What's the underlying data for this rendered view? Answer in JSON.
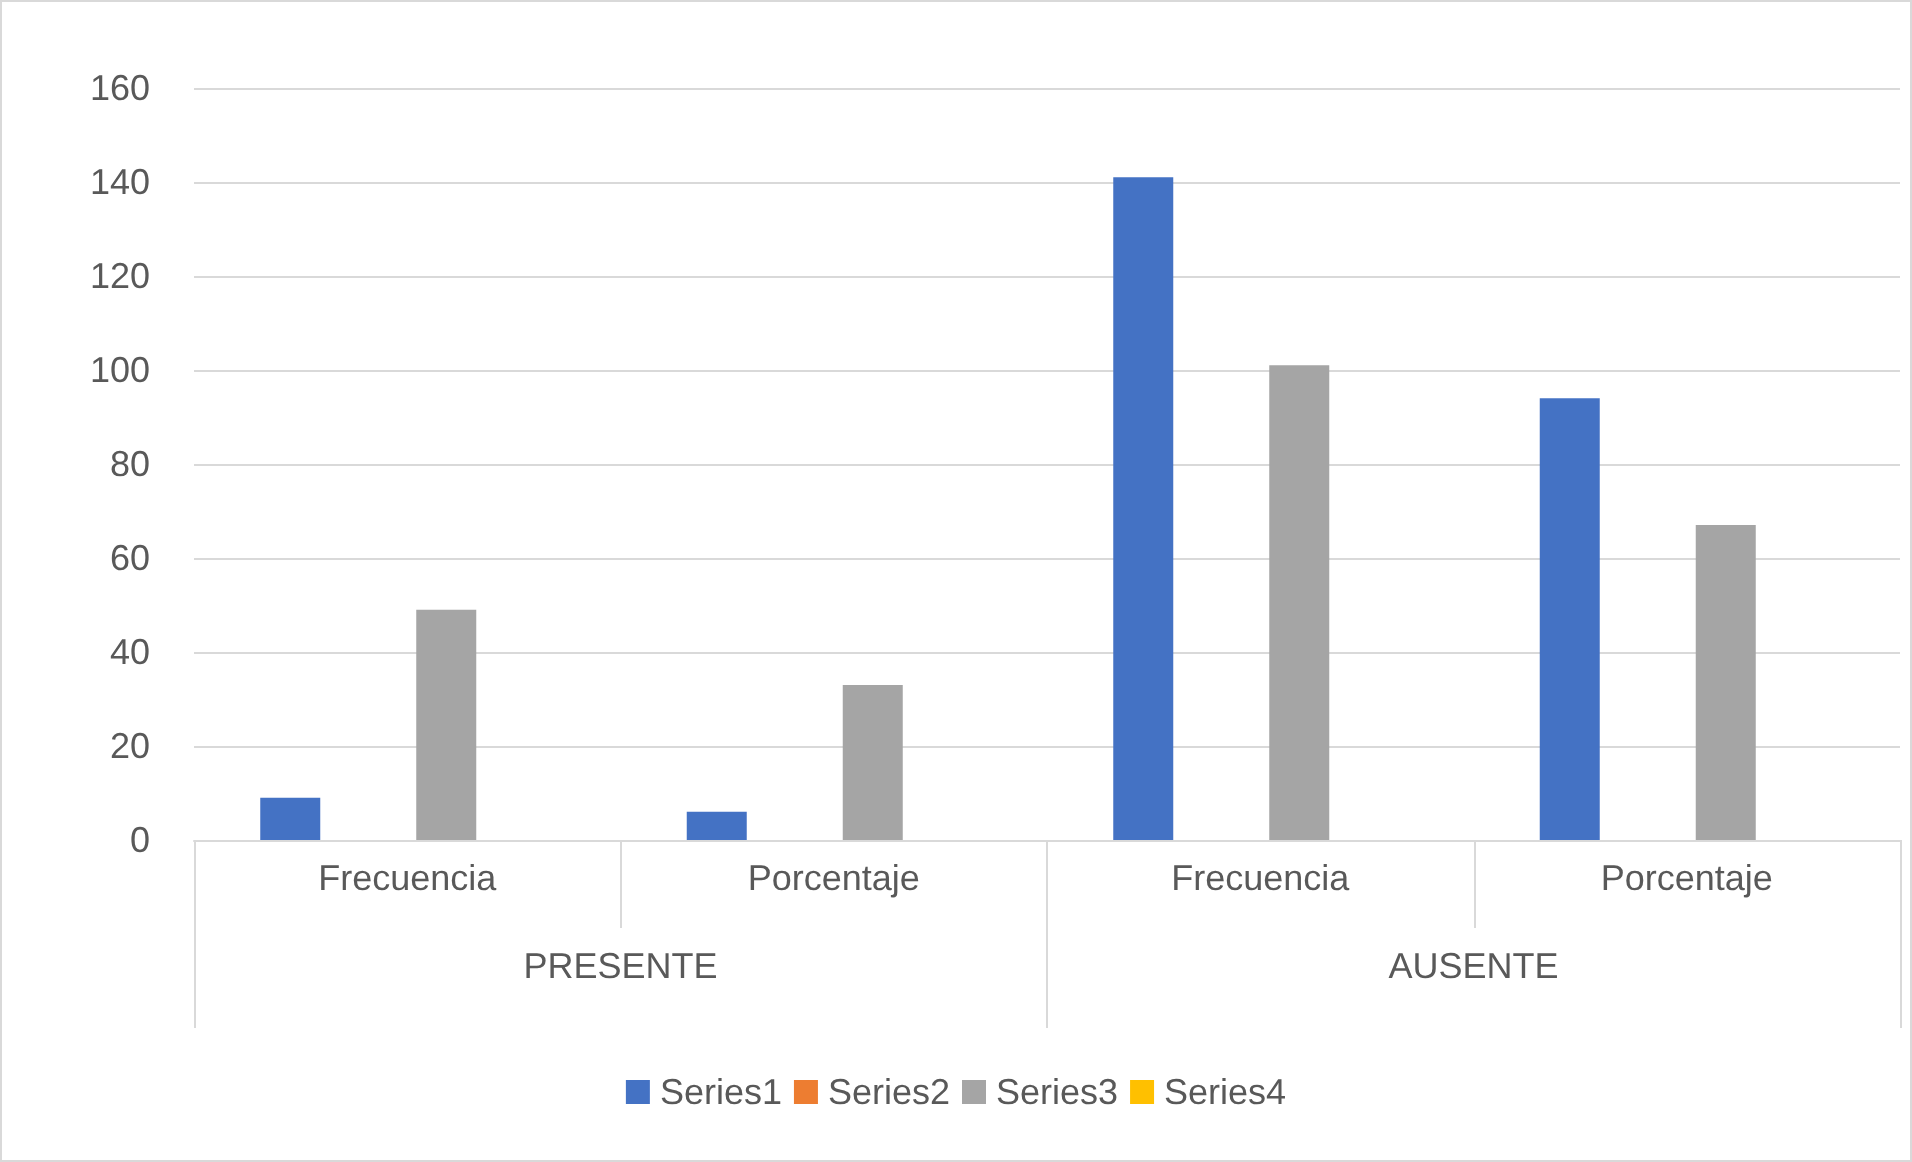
{
  "chart_data": {
    "type": "bar",
    "categories": [
      "Frecuencia",
      "Porcentaje",
      "Frecuencia",
      "Porcentaje"
    ],
    "annotations": [
      "PRESENTE",
      "AUSENTE"
    ],
    "series": [
      {
        "name": "Series1",
        "color": "#4472c4",
        "values": [
          9,
          6,
          141,
          94
        ]
      },
      {
        "name": "Series2",
        "color": "#ed7d31",
        "values": [
          null,
          null,
          null,
          null
        ]
      },
      {
        "name": "Series3",
        "color": "#a5a5a5",
        "values": [
          49,
          33,
          101,
          67
        ]
      },
      {
        "name": "Series4",
        "color": "#ffc000",
        "values": [
          null,
          null,
          null,
          null
        ]
      }
    ],
    "ylim": [
      0,
      160
    ],
    "yticks": [
      0,
      20,
      40,
      60,
      80,
      100,
      120,
      140,
      160
    ],
    "grid": "y",
    "legend": "bottom"
  }
}
